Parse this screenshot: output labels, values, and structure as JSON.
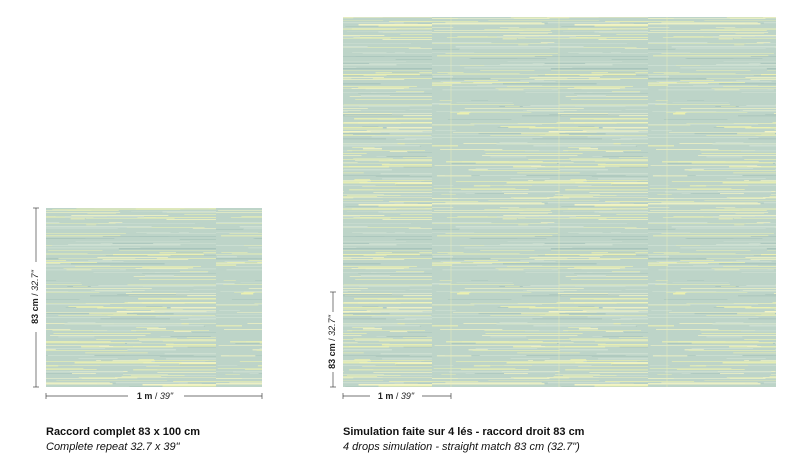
{
  "repeat": {
    "height_label": {
      "metric": "83 cm",
      "separator": "/",
      "imperial": "32.7\""
    },
    "width_label": {
      "metric": "1 m",
      "separator": "/",
      "imperial": "39\""
    },
    "caption_fr": "Raccord complet 83 x 100 cm",
    "caption_en": "Complete repeat 32.7 x 39\""
  },
  "simulation": {
    "height_label": {
      "metric": "83 cm",
      "separator": "/",
      "imperial": "32.7\""
    },
    "width_label": {
      "metric": "1 m",
      "separator": "/",
      "imperial": "39\""
    },
    "caption_fr": "Simulation faite sur 4 lés - raccord droit 83 cm",
    "caption_en": "4 drops simulation - straight match 83 cm (32.7\")"
  }
}
